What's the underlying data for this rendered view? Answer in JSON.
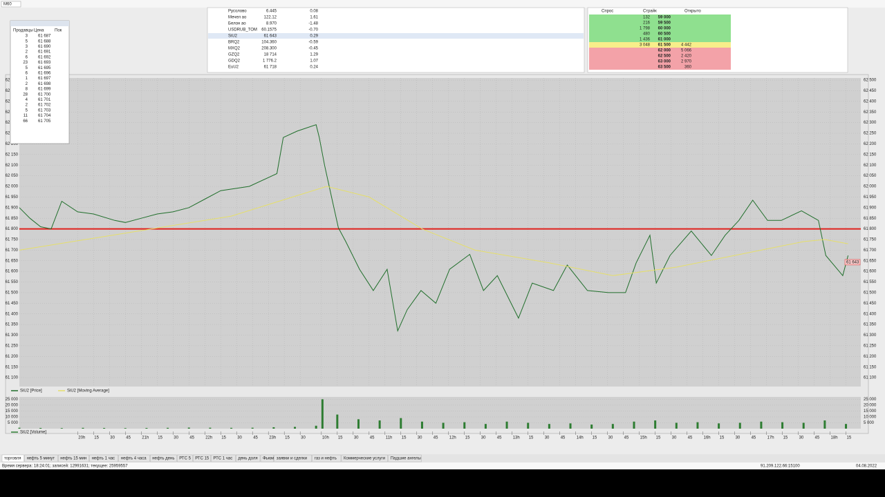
{
  "toolbar": {
    "symbol": "M60"
  },
  "quote_table": {
    "rows": [
      [
        "Русолово",
        "6.445",
        "0.08"
      ],
      [
        "Мечел ао",
        "122.12",
        "1.61"
      ],
      [
        "Белон ао",
        "8.970",
        "-1.48"
      ],
      [
        "USDRUB_TOM",
        "60.1575",
        "-0.70"
      ],
      [
        "SiU2",
        "61 643",
        "0.29"
      ],
      [
        "BRQ2",
        "104.360",
        "-0.59"
      ],
      [
        "MXQ2",
        "208.300",
        "-0.45"
      ],
      [
        "GZQ2",
        "18 714",
        "1.29"
      ],
      [
        "GDQ2",
        "1 776.2",
        "1.07"
      ],
      [
        "EuU2",
        "61 718",
        "0.24"
      ]
    ]
  },
  "order_book": {
    "header": [
      "Спрос",
      "Страйк",
      "Открыто"
    ],
    "rows": [
      [
        "132",
        "59 000",
        ""
      ],
      [
        "216",
        "59 500",
        ""
      ],
      [
        "1 798",
        "60 000",
        ""
      ],
      [
        "480",
        "60 500",
        ""
      ],
      [
        "1 436",
        "61 000",
        ""
      ],
      [
        "3 048",
        "61 500",
        "4 442"
      ],
      [
        "",
        "62 000",
        "5 066"
      ],
      [
        "",
        "62 500",
        "2 420"
      ],
      [
        "",
        "63 000",
        "2 970"
      ],
      [
        "",
        "63 500",
        "360"
      ]
    ]
  },
  "depth_window": {
    "header": [
      "Продавцы",
      "Цена",
      "Пок"
    ],
    "rows": [
      [
        3,
        "61 687"
      ],
      [
        5,
        "61 688"
      ],
      [
        3,
        "61 690"
      ],
      [
        2,
        "61 691"
      ],
      [
        6,
        "61 692"
      ],
      [
        23,
        "61 693"
      ],
      [
        5,
        "61 695"
      ],
      [
        6,
        "61 696"
      ],
      [
        1,
        "61 697"
      ],
      [
        2,
        "61 698"
      ],
      [
        8,
        "61 699"
      ],
      [
        28,
        "61 700"
      ],
      [
        4,
        "61 701"
      ],
      [
        2,
        "61 702"
      ],
      [
        5,
        "61 703"
      ],
      [
        11,
        "61 704"
      ],
      [
        66,
        "61 705"
      ]
    ]
  },
  "chart_data": [
    {
      "type": "line",
      "xlim": [
        0,
        794
      ],
      "ylim": [
        61058,
        62510
      ],
      "grid": true,
      "hline": 61800,
      "hline_color": "#e0201c",
      "last": {
        "value": 61643,
        "label": "61 643"
      },
      "yticks": [
        {
          "value": 62500,
          "label": "62 500"
        },
        {
          "value": 62450,
          "label": "62 450"
        },
        {
          "value": 62400,
          "label": "62 400"
        },
        {
          "value": 62350,
          "label": "62 350"
        },
        {
          "value": 62300,
          "label": "62 300"
        },
        {
          "value": 62250,
          "label": "62 250"
        },
        {
          "value": 62200,
          "label": "62 200"
        },
        {
          "value": 62150,
          "label": "62 150"
        },
        {
          "value": 62100,
          "label": "62 100"
        },
        {
          "value": 62050,
          "label": "62 050"
        },
        {
          "value": 62000,
          "label": "62 000"
        },
        {
          "value": 61950,
          "label": "61 950"
        },
        {
          "value": 61900,
          "label": "61 900"
        },
        {
          "value": 61850,
          "label": "61 850"
        },
        {
          "value": 61800,
          "label": "61 800"
        },
        {
          "value": 61750,
          "label": "61 750"
        },
        {
          "value": 61700,
          "label": "61 700"
        },
        {
          "value": 61650,
          "label": "61 650"
        },
        {
          "value": 61600,
          "label": "61 600"
        },
        {
          "value": 61550,
          "label": "61 550"
        },
        {
          "value": 61500,
          "label": "61 500"
        },
        {
          "value": 61450,
          "label": "61 450"
        },
        {
          "value": 61400,
          "label": "61 400"
        },
        {
          "value": 61350,
          "label": "61 350"
        },
        {
          "value": 61300,
          "label": "61 300"
        },
        {
          "value": 61250,
          "label": "61 250"
        },
        {
          "value": 61200,
          "label": "61 200"
        },
        {
          "value": 61150,
          "label": "61 150"
        },
        {
          "value": 61100,
          "label": "61 100"
        }
      ],
      "series": [
        {
          "name": "SiU2 [Price]",
          "color": "#1f6e2a",
          "x": [
            0,
            10,
            20,
            30,
            40,
            55,
            70,
            90,
            100,
            115,
            130,
            145,
            160,
            175,
            190,
            217,
            243,
            249,
            262,
            280,
            283,
            288,
            295,
            301,
            308,
            321,
            334,
            347,
            357,
            366,
            379,
            393,
            406,
            425,
            438,
            451,
            471,
            484,
            504,
            517,
            536,
            556,
            572,
            582,
            595,
            601,
            614,
            634,
            653,
            666,
            679,
            692,
            706,
            719,
            738,
            754,
            761,
            777,
            782
          ],
          "values": [
            61900,
            61850,
            61810,
            61800,
            61930,
            61880,
            61870,
            61840,
            61830,
            61850,
            61870,
            61880,
            61900,
            61940,
            61980,
            62000,
            62060,
            62230,
            62260,
            62290,
            62230,
            62100,
            61940,
            61805,
            61740,
            61610,
            61510,
            61610,
            61320,
            61420,
            61510,
            61450,
            61610,
            61680,
            61510,
            61580,
            61380,
            61545,
            61510,
            61630,
            61510,
            61500,
            61500,
            61640,
            61770,
            61545,
            61675,
            61790,
            61675,
            61770,
            61840,
            61935,
            61840,
            61840,
            61885,
            61840,
            61675,
            61580,
            61675
          ]
        },
        {
          "name": "SiU2 [Moving Average]",
          "color": "#e6df6a",
          "x": [
            0,
            100,
            200,
            290,
            330,
            380,
            430,
            500,
            560,
            620,
            680,
            740,
            760,
            782
          ],
          "values": [
            61700,
            61780,
            61860,
            62000,
            61950,
            61800,
            61700,
            61640,
            61580,
            61620,
            61680,
            61740,
            61750,
            61730
          ]
        }
      ]
    },
    {
      "type": "bar",
      "xlim": [
        0,
        794
      ],
      "ylim": [
        0,
        27000
      ],
      "color": "#2e7d32",
      "series_name": "SiU2 [Volume]",
      "yticks": [
        {
          "value": 25000,
          "label": "25 000"
        },
        {
          "value": 20000,
          "label": "20 000"
        },
        {
          "value": 15000,
          "label": "15 000"
        },
        {
          "value": 10000,
          "label": "10 000"
        },
        {
          "value": 5000,
          "label": "5 000"
        }
      ],
      "xticks": [
        {
          "value": 55,
          "label": "20h"
        },
        {
          "value": 70,
          "label": "15"
        },
        {
          "value": 85,
          "label": "30"
        },
        {
          "value": 100,
          "label": "45"
        },
        {
          "value": 115,
          "label": "21h"
        },
        {
          "value": 130,
          "label": "15"
        },
        {
          "value": 145,
          "label": "30"
        },
        {
          "value": 160,
          "label": "45"
        },
        {
          "value": 175,
          "label": "22h"
        },
        {
          "value": 190,
          "label": "15"
        },
        {
          "value": 205,
          "label": "30"
        },
        {
          "value": 220,
          "label": "45"
        },
        {
          "value": 235,
          "label": "23h"
        },
        {
          "value": 250,
          "label": "15"
        },
        {
          "value": 265,
          "label": "30"
        },
        {
          "value": 285,
          "label": "10h"
        },
        {
          "value": 300,
          "label": "15"
        },
        {
          "value": 315,
          "label": "30"
        },
        {
          "value": 330,
          "label": "45"
        },
        {
          "value": 345,
          "label": "11h"
        },
        {
          "value": 360,
          "label": "15"
        },
        {
          "value": 375,
          "label": "30"
        },
        {
          "value": 390,
          "label": "45"
        },
        {
          "value": 405,
          "label": "12h"
        },
        {
          "value": 420,
          "label": "15"
        },
        {
          "value": 435,
          "label": "30"
        },
        {
          "value": 450,
          "label": "45"
        },
        {
          "value": 465,
          "label": "13h"
        },
        {
          "value": 480,
          "label": "15"
        },
        {
          "value": 495,
          "label": "30"
        },
        {
          "value": 510,
          "label": "45"
        },
        {
          "value": 525,
          "label": "14h"
        },
        {
          "value": 540,
          "label": "15"
        },
        {
          "value": 555,
          "label": "30"
        },
        {
          "value": 570,
          "label": "45"
        },
        {
          "value": 585,
          "label": "15h"
        },
        {
          "value": 600,
          "label": "15"
        },
        {
          "value": 615,
          "label": "30"
        },
        {
          "value": 630,
          "label": "45"
        },
        {
          "value": 645,
          "label": "16h"
        },
        {
          "value": 660,
          "label": "15"
        },
        {
          "value": 675,
          "label": "30"
        },
        {
          "value": 690,
          "label": "45"
        },
        {
          "value": 705,
          "label": "17h"
        },
        {
          "value": 720,
          "label": "15"
        },
        {
          "value": 735,
          "label": "30"
        },
        {
          "value": 750,
          "label": "45"
        },
        {
          "value": 765,
          "label": "18h"
        },
        {
          "value": 780,
          "label": "15"
        }
      ],
      "x": [
        0,
        20,
        40,
        60,
        80,
        100,
        120,
        140,
        160,
        180,
        200,
        220,
        240,
        260,
        280,
        286,
        300,
        320,
        340,
        360,
        380,
        400,
        420,
        440,
        460,
        480,
        500,
        520,
        540,
        560,
        580,
        600,
        620,
        640,
        660,
        680,
        700,
        720,
        740,
        760,
        780
      ],
      "values": [
        800,
        600,
        500,
        700,
        600,
        500,
        600,
        700,
        900,
        800,
        700,
        800,
        1200,
        1500,
        2500,
        25000,
        12000,
        8000,
        7000,
        9000,
        6000,
        5000,
        5500,
        4000,
        6000,
        5000,
        4000,
        4500,
        3500,
        4000,
        6000,
        7000,
        5000,
        5500,
        4500,
        5000,
        6000,
        5500,
        5000,
        7000,
        4000
      ]
    }
  ],
  "tabs": [
    "торговля",
    "нефть 5 минут",
    "нефть 15 мин",
    "нефть 1 час",
    "нефть 4 часа",
    "нефть день",
    "РТС 5",
    "РТС 15",
    "РТС 1 час",
    "день доля",
    "Фьюм",
    "заявки и сделки",
    "газ и нефть",
    "Коммерческие услуги",
    "Падшие ангелы"
  ],
  "status": {
    "server": "Время сервера: 18:24:01; записей: 12991631; текущее: 25959557",
    "address": "91.209.122.66:15100",
    "date": "04.08.2022"
  }
}
